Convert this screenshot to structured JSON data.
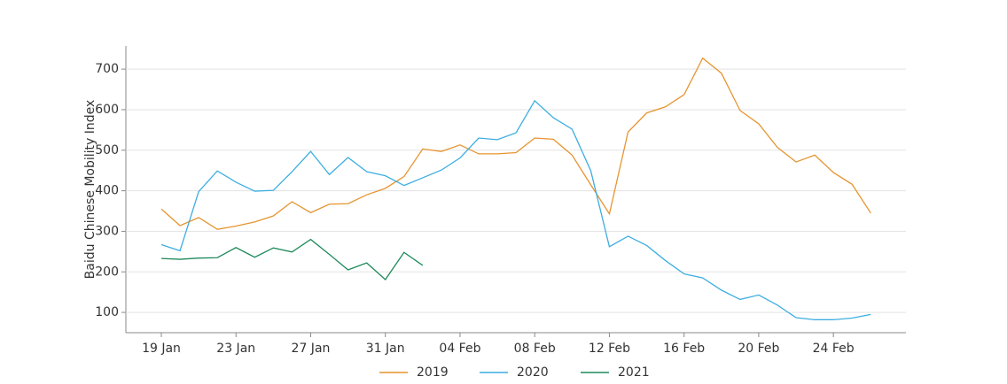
{
  "chart_data": {
    "type": "line",
    "y_label": "Baidu Chinese Mobility Index",
    "categories": [
      "19 Jan",
      null,
      null,
      null,
      "23 Jan",
      null,
      null,
      null,
      "27 Jan",
      null,
      null,
      null,
      "31 Jan",
      null,
      null,
      null,
      "04 Feb",
      null,
      null,
      null,
      "08 Feb",
      null,
      null,
      null,
      "12 Feb",
      null,
      null,
      null,
      "16 Feb",
      null,
      null,
      null,
      "20 Feb",
      null,
      null,
      null,
      "24 Feb",
      null,
      null
    ],
    "series": [
      {
        "name": "2019",
        "color": "#e6942f",
        "values": [
          355,
          314,
          334,
          305,
          313,
          323,
          338,
          373,
          346,
          367,
          368,
          390,
          406,
          435,
          503,
          497,
          513,
          491,
          491,
          494,
          530,
          527,
          488,
          415,
          343,
          545,
          592,
          607,
          637,
          727,
          690,
          598,
          565,
          507,
          471,
          488,
          445,
          416,
          345
        ]
      },
      {
        "name": "2020",
        "color": "#3daee0",
        "values": [
          267,
          252,
          398,
          449,
          421,
          399,
          401,
          447,
          497,
          440,
          482,
          447,
          437,
          413,
          432,
          451,
          481,
          530,
          526,
          543,
          622,
          580,
          552,
          450,
          262,
          288,
          265,
          228,
          195,
          185,
          155,
          132,
          143,
          118,
          87,
          82,
          82,
          86,
          95
        ]
      },
      {
        "name": "2021",
        "color": "#1e8a5a",
        "values": [
          233,
          231,
          234,
          235,
          260,
          236,
          259,
          249,
          280,
          243,
          205,
          222,
          181,
          248,
          216,
          null,
          null,
          null,
          null,
          null,
          null,
          null,
          null,
          null,
          null,
          null,
          null,
          null,
          null,
          null,
          null,
          null,
          null,
          null,
          null,
          null,
          null,
          null,
          null
        ]
      }
    ],
    "ylim": [
      50,
      757
    ],
    "yticks": [
      100,
      200,
      300,
      400,
      500,
      600,
      700
    ],
    "grid": true,
    "legend": "bottom"
  }
}
